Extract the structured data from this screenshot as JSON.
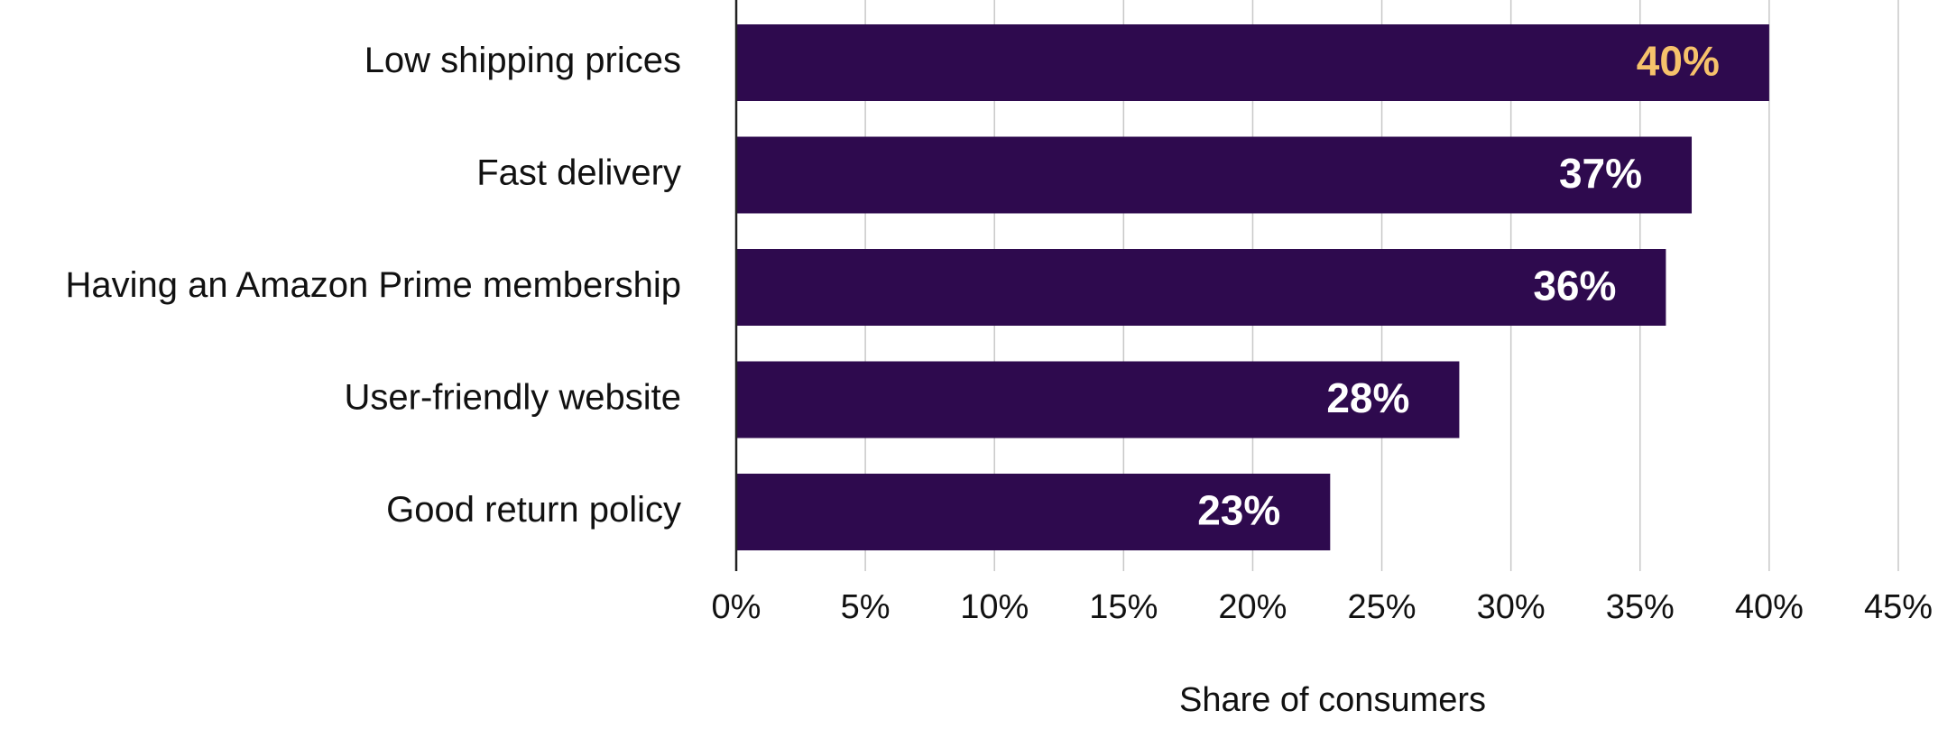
{
  "chart_data": {
    "type": "bar",
    "orientation": "horizontal",
    "categories": [
      "Low shipping prices",
      "Fast delivery",
      "Having an Amazon Prime membership",
      "User-friendly website",
      "Good return policy"
    ],
    "values": [
      40,
      37,
      36,
      28,
      23
    ],
    "value_labels": [
      "40%",
      "37%",
      "36%",
      "28%",
      "23%"
    ],
    "value_label_colors": [
      "#f6c26b",
      "#ffffff",
      "#ffffff",
      "#ffffff",
      "#ffffff"
    ],
    "color": "#2e0a4e",
    "xlabel": "Share of consumers",
    "xlim": [
      0,
      45
    ],
    "xticks": [
      {
        "value": 0,
        "label": "0%"
      },
      {
        "value": 5,
        "label": "5%"
      },
      {
        "value": 10,
        "label": "10%"
      },
      {
        "value": 15,
        "label": "15%"
      },
      {
        "value": 20,
        "label": "20%"
      },
      {
        "value": 25,
        "label": "25%"
      },
      {
        "value": 30,
        "label": "30%"
      },
      {
        "value": 35,
        "label": "35%"
      },
      {
        "value": 40,
        "label": "40%"
      },
      {
        "value": 45,
        "label": "45%"
      }
    ],
    "grid": true
  }
}
